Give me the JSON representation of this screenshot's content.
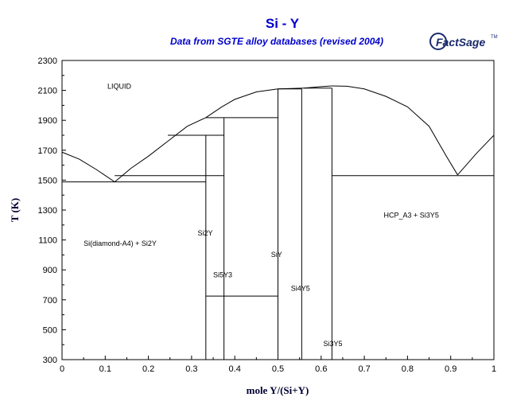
{
  "chart_data": {
    "type": "line",
    "title": "Si - Y",
    "subtitle": "Data from SGTE alloy databases (revised 2004)",
    "xlabel": "mole Y/(Si+Y)",
    "ylabel": "T (K)",
    "xlim": [
      0,
      1
    ],
    "ylim": [
      300,
      2300
    ],
    "grid": false,
    "xticks": [
      0,
      0.1,
      0.2,
      0.3,
      0.4,
      0.5,
      0.6,
      0.7,
      0.8,
      0.9,
      1
    ],
    "xtick_labels": [
      "0",
      "0.1",
      "0.2",
      "0.3",
      "0.4",
      "0.5",
      "0.6",
      "0.7",
      "0.8",
      "0.9",
      "1"
    ],
    "yticks": [
      300,
      500,
      700,
      900,
      1100,
      1300,
      1500,
      1700,
      1900,
      2100,
      2300
    ],
    "ytick_labels": [
      "300",
      "500",
      "700",
      "900",
      "1100",
      "1300",
      "1500",
      "1700",
      "1900",
      "2100",
      "2300"
    ],
    "series": [
      {
        "values": [
          [
            0,
            1687
          ],
          [
            0.04,
            1640
          ],
          [
            0.08,
            1570
          ],
          [
            0.122,
            1488
          ],
          [
            0.16,
            1580
          ],
          [
            0.2,
            1660
          ],
          [
            0.245,
            1760
          ]
        ]
      },
      {
        "values": [
          [
            0.245,
            1760
          ],
          [
            0.29,
            1860
          ],
          [
            0.333,
            1918
          ]
        ]
      },
      {
        "values": [
          [
            0.333,
            1918
          ],
          [
            0.37,
            1990
          ],
          [
            0.4,
            2040
          ],
          [
            0.45,
            2090
          ],
          [
            0.5,
            2110
          ]
        ]
      },
      {
        "values": [
          [
            0.5,
            2110
          ],
          [
            0.56,
            2115
          ]
        ]
      },
      {
        "values": [
          [
            0.56,
            2115
          ],
          [
            0.6,
            2125
          ],
          [
            0.625,
            2130
          ]
        ]
      },
      {
        "values": [
          [
            0.625,
            2130
          ],
          [
            0.66,
            2128
          ],
          [
            0.7,
            2110
          ],
          [
            0.75,
            2060
          ],
          [
            0.8,
            1990
          ],
          [
            0.85,
            1860
          ],
          [
            0.89,
            1660
          ],
          [
            0.916,
            1535
          ]
        ]
      },
      {
        "values": [
          [
            0.916,
            1535
          ],
          [
            0.96,
            1680
          ],
          [
            0.985,
            1755
          ],
          [
            1,
            1800
          ]
        ]
      },
      {
        "values": [
          [
            0,
            1488
          ],
          [
            0.333,
            1488
          ]
        ]
      },
      {
        "values": [
          [
            0.122,
            1530
          ],
          [
            0.375,
            1530
          ]
        ]
      },
      {
        "values": [
          [
            0.245,
            1800
          ],
          [
            0.375,
            1800
          ]
        ]
      },
      {
        "values": [
          [
            0.333,
            1918
          ],
          [
            0.5,
            1918
          ]
        ]
      },
      {
        "values": [
          [
            0.5,
            2110
          ],
          [
            0.555,
            2110
          ]
        ]
      },
      {
        "values": [
          [
            0.56,
            2115
          ],
          [
            0.625,
            2115
          ]
        ]
      },
      {
        "values": [
          [
            0.625,
            1530
          ],
          [
            1,
            1530
          ]
        ]
      },
      {
        "values": [
          [
            0.333,
            725
          ],
          [
            0.5,
            725
          ]
        ]
      },
      {
        "values": [
          [
            0.333,
            300
          ],
          [
            0.333,
            1800
          ]
        ]
      },
      {
        "values": [
          [
            0.375,
            300
          ],
          [
            0.375,
            1918
          ]
        ]
      },
      {
        "values": [
          [
            0.5,
            300
          ],
          [
            0.5,
            2110
          ]
        ]
      },
      {
        "values": [
          [
            0.555,
            300
          ],
          [
            0.555,
            2110
          ]
        ]
      },
      {
        "values": [
          [
            0.625,
            300
          ],
          [
            0.625,
            2115
          ]
        ]
      }
    ],
    "annotations": [
      {
        "text": "LIQUID",
        "x": 0.105,
        "y": 2110
      },
      {
        "text": "Si(diamond-A4) + Si2Y",
        "x": 0.05,
        "y": 1060
      },
      {
        "text": "Si2Y",
        "x": 0.314,
        "y": 1130
      },
      {
        "text": "Si5Y3",
        "x": 0.35,
        "y": 850
      },
      {
        "text": "SiY",
        "x": 0.484,
        "y": 985
      },
      {
        "text": "Si4Y5",
        "x": 0.53,
        "y": 760
      },
      {
        "text": "Si3Y5",
        "x": 0.605,
        "y": 390
      },
      {
        "text": "HCP_A3 + Si3Y5",
        "x": 0.745,
        "y": 1250
      }
    ]
  },
  "logo": {
    "text": "FactSage",
    "mark": "TM",
    "color": "#1a2a6c"
  }
}
